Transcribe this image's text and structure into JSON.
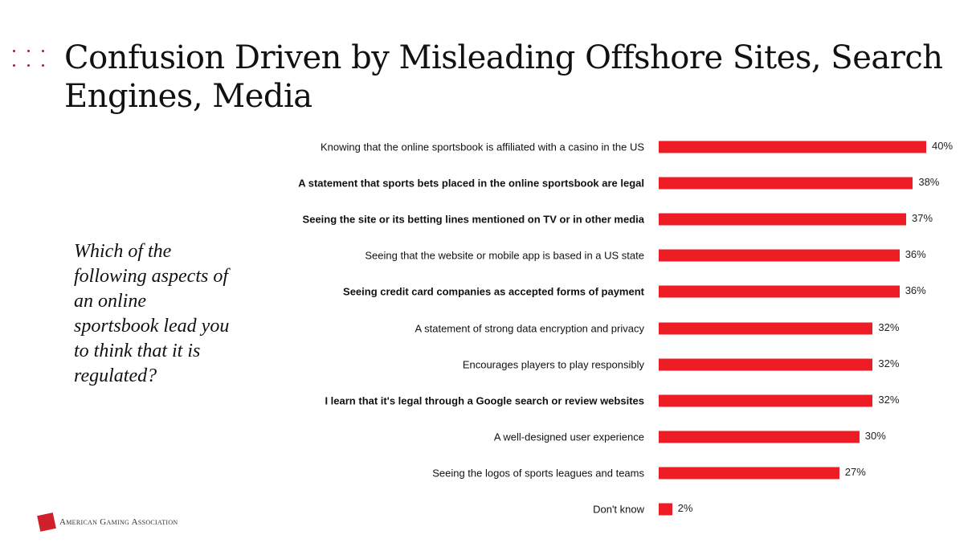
{
  "title": "Confusion Driven by Misleading Offshore Sites, Search Engines, Media",
  "question": "Which of the following aspects of an online sportsbook lead you to think that it is regulated?",
  "logo": {
    "text": "American Gaming Association",
    "mark": "GA"
  },
  "chart_data": {
    "type": "bar",
    "orientation": "horizontal",
    "color": "#ee1c25",
    "xlim": [
      0,
      40
    ],
    "categories": [
      "Knowing that the online sportsbook is affiliated with a casino in the US",
      "A statement that sports bets placed in the online sportsbook are legal",
      "Seeing the site or its betting lines mentioned on TV or in other media",
      "Seeing that the website or mobile app is based in a US state",
      "Seeing credit card companies as accepted forms of payment",
      "A statement of strong data encryption and privacy",
      "Encourages players to play responsibly",
      "I learn that it's legal through a Google search or review websites",
      "A well-designed user experience",
      "Seeing the logos of sports leagues and teams",
      "Don't know"
    ],
    "bold": [
      false,
      true,
      true,
      false,
      true,
      false,
      false,
      true,
      false,
      false,
      false
    ],
    "values": [
      40,
      38,
      37,
      36,
      36,
      32,
      32,
      32,
      30,
      27,
      2
    ],
    "data_labels": [
      "40%",
      "38%",
      "37%",
      "36%",
      "36%",
      "32%",
      "32%",
      "32%",
      "30%",
      "27%",
      "2%"
    ]
  }
}
